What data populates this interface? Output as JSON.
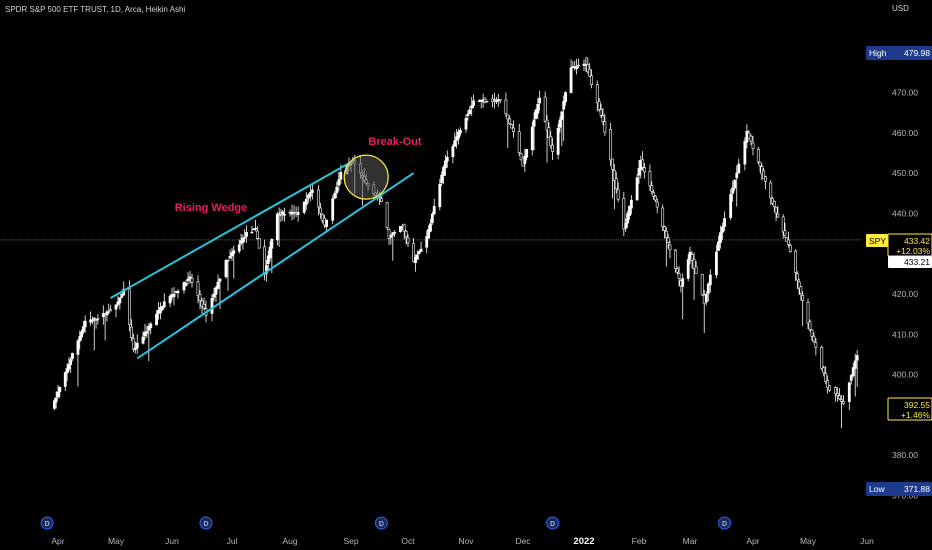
{
  "header": {
    "title": "SPDR S&P 500 ETF TRUST, 1D, Arca, Heikin Ashi",
    "currency": "USD"
  },
  "colors": {
    "background": "#000000",
    "candle": "#ffffff",
    "trendline": "#26c6da",
    "annotation_text": "#e91e63",
    "highlight_circle": "#ffeb3b",
    "price_marker": "#ffeb3b",
    "high_low_badge": "#1e3a8a",
    "dividend_badge": "#2962ff"
  },
  "chart_data": {
    "type": "candlestick",
    "title": "SPDR S&P 500 ETF TRUST, 1D, Arca, Heikin Ashi",
    "x_tick_labels": [
      "Apr",
      "May",
      "Jun",
      "Jul",
      "Aug",
      "Sep",
      "Oct",
      "Nov",
      "Dec",
      "2022",
      "Feb",
      "Mar",
      "Apr",
      "May",
      "Jun"
    ],
    "y_tick_labels": [
      "370.00",
      "380.00",
      "390.00",
      "400.00",
      "410.00",
      "420.00",
      "430.00",
      "440.00",
      "450.00",
      "460.00",
      "470.00"
    ],
    "ylim": [
      366,
      485
    ],
    "price_path": [
      [
        "2021-03-29",
        392
      ],
      [
        "2021-04-09",
        405
      ],
      [
        "2021-04-16",
        413
      ],
      [
        "2021-04-23",
        414
      ],
      [
        "2021-05-03",
        417
      ],
      [
        "2021-05-07",
        421
      ],
      [
        "2021-05-12",
        406
      ],
      [
        "2021-05-19",
        411
      ],
      [
        "2021-05-28",
        418
      ],
      [
        "2021-06-04",
        421
      ],
      [
        "2021-06-10",
        424
      ],
      [
        "2021-06-18",
        415
      ],
      [
        "2021-06-28",
        428
      ],
      [
        "2021-07-09",
        435
      ],
      [
        "2021-07-14",
        436
      ],
      [
        "2021-07-19",
        425
      ],
      [
        "2021-07-26",
        440
      ],
      [
        "2021-08-06",
        440
      ],
      [
        "2021-08-13",
        446
      ],
      [
        "2021-08-19",
        437
      ],
      [
        "2021-08-27",
        450
      ],
      [
        "2021-09-02",
        453
      ],
      [
        "2021-09-08",
        448
      ],
      [
        "2021-09-17",
        443
      ],
      [
        "2021-09-21",
        434
      ],
      [
        "2021-09-28",
        437
      ],
      [
        "2021-10-04",
        428
      ],
      [
        "2021-10-11",
        434
      ],
      [
        "2021-10-21",
        453
      ],
      [
        "2021-11-05",
        468
      ],
      [
        "2021-11-19",
        468
      ],
      [
        "2021-11-26",
        460
      ],
      [
        "2021-12-01",
        452
      ],
      [
        "2021-12-10",
        469
      ],
      [
        "2021-12-17",
        455
      ],
      [
        "2021-12-27",
        476
      ],
      [
        "2022-01-04",
        477
      ],
      [
        "2022-01-13",
        463
      ],
      [
        "2022-01-24",
        436
      ],
      [
        "2022-02-02",
        453
      ],
      [
        "2022-02-10",
        443
      ],
      [
        "2022-02-24",
        422
      ],
      [
        "2022-03-01",
        430
      ],
      [
        "2022-03-08",
        418
      ],
      [
        "2022-03-16",
        435
      ],
      [
        "2022-03-29",
        460
      ],
      [
        "2022-04-07",
        449
      ],
      [
        "2022-04-14",
        440
      ],
      [
        "2022-04-21",
        432
      ],
      [
        "2022-05-02",
        413
      ],
      [
        "2022-05-12",
        397
      ],
      [
        "2022-05-20",
        393
      ],
      [
        "2022-05-31",
        412
      ],
      [
        "2022-06-06",
        411
      ],
      [
        "2022-06-10",
        392.55
      ]
    ],
    "high": {
      "label": "High",
      "value": "479.98"
    },
    "low": {
      "label": "Low",
      "value": "371.88"
    },
    "current": {
      "symbol": "SPY",
      "value": "433.42",
      "change": "+12.03%",
      "secondary": "433.21"
    },
    "last": {
      "value": "392.55",
      "change": "+1.46%"
    },
    "dividend_marker_label": "D",
    "dividend_dates": [
      "2021-03-26",
      "2021-06-18",
      "2021-09-17",
      "2021-12-17",
      "2022-03-18"
    ],
    "annotations": [
      {
        "text": "Rising Wedge"
      },
      {
        "text": "Break-Out"
      }
    ],
    "wedge_lines": [
      {
        "from": [
          "2021-04-30",
          419
        ],
        "to": [
          "2021-09-02",
          453
        ]
      },
      {
        "from": [
          "2021-05-14",
          404
        ],
        "to": [
          "2021-10-04",
          450
        ]
      }
    ],
    "breakout_circle_center": [
      "2021-09-09",
      449
    ],
    "horizontal_line": 433.42
  }
}
